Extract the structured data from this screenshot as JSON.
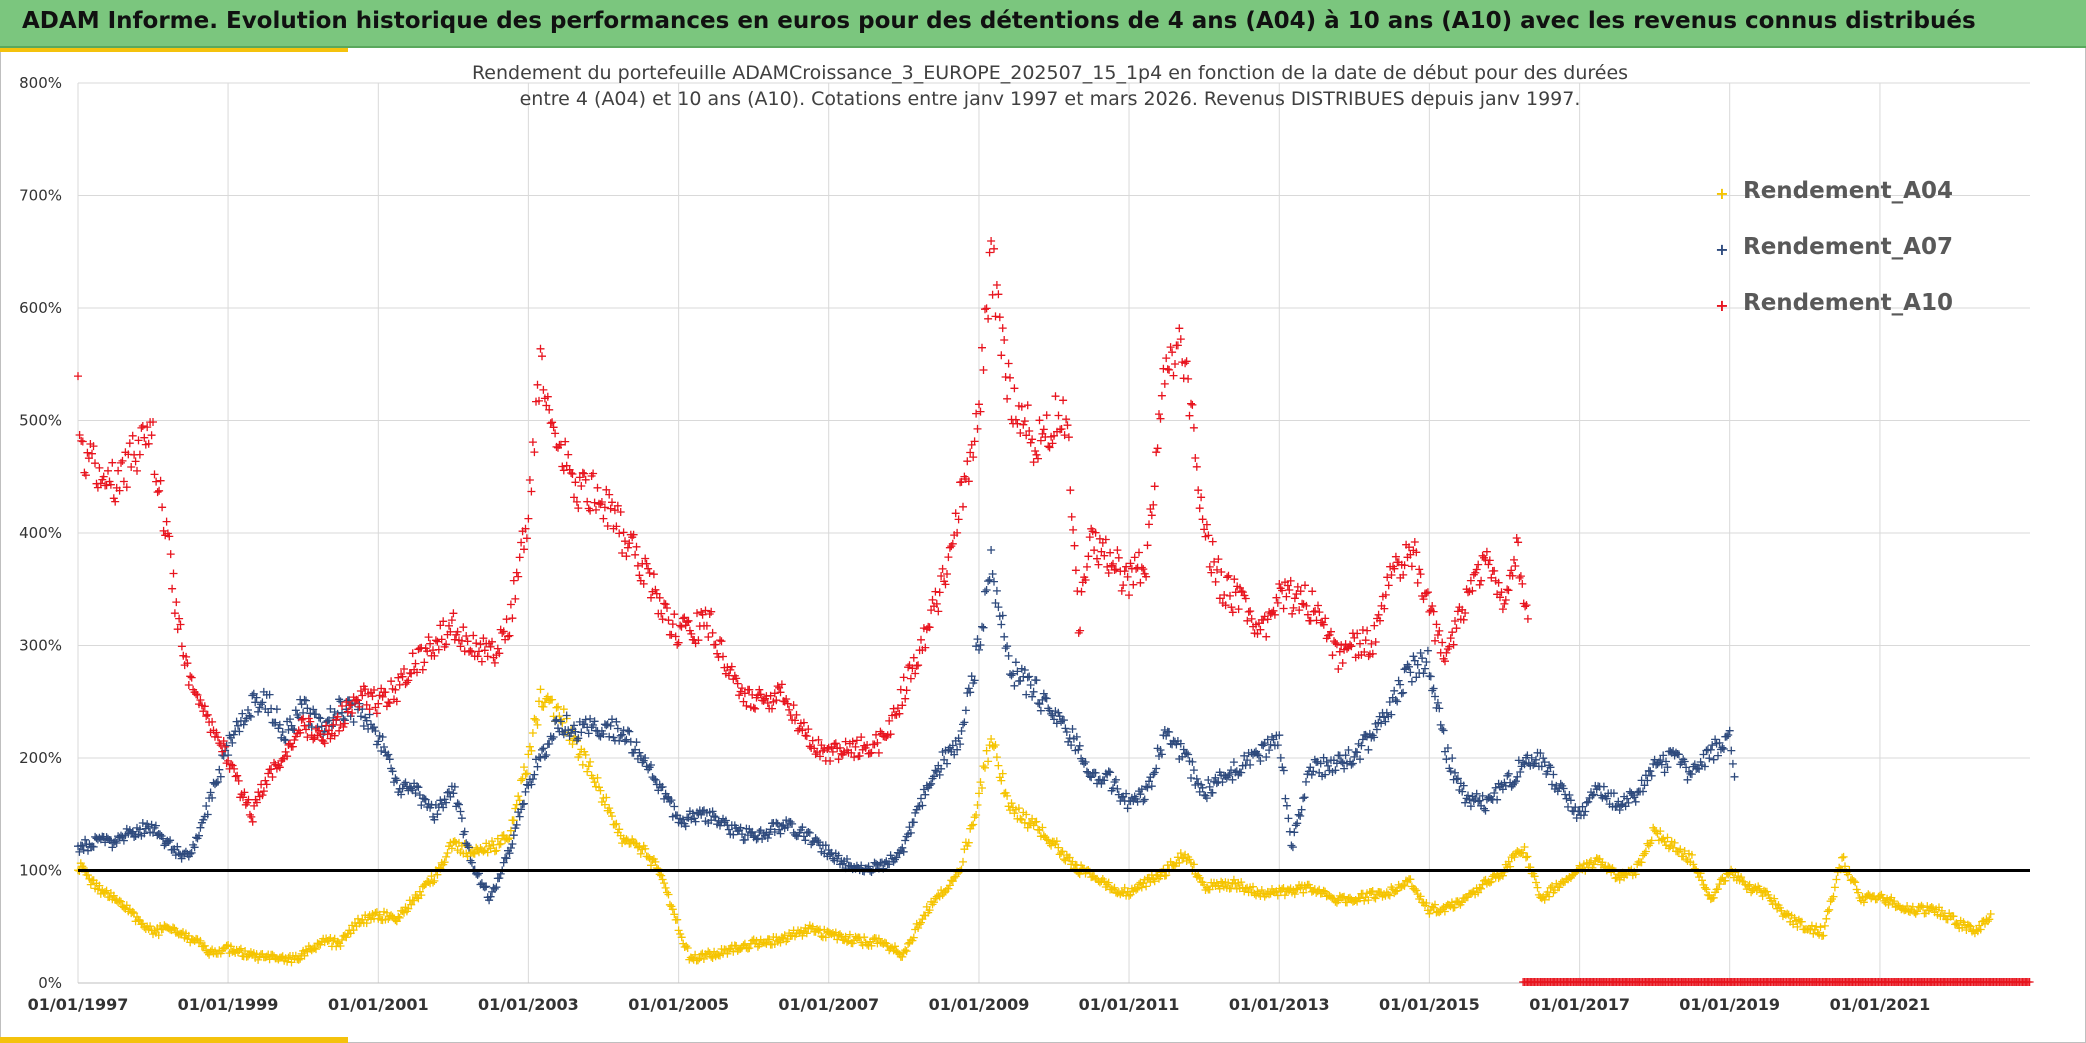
{
  "banner": {
    "title": "ADAM Informe. Evolution historique des performances en euros pour des détentions de 4 ans (A04) à 10 ans (A10) avec les revenus connus distribués"
  },
  "colors": {
    "banner": "#7bc67e",
    "accent": "#f4c20d",
    "A04": "#f5c400",
    "A07": "#2e4a7d",
    "A10": "#e8141e",
    "reference_line": "#000000"
  },
  "chart_data": {
    "type": "scatter",
    "title": "Rendement du portefeuille ADAMCroissance_3_EUROPE_202507_15_1p4  en fonction de la date de début pour des durées",
    "subtitle": "entre 4 (A04) et 10 ans (A10). Cotations entre janv 1997 et mars 2026. Revenus DISTRIBUES depuis janv 1997.",
    "marker": "+",
    "x_scale": "date",
    "xlim": [
      "1997-01-01",
      "2023-01-01"
    ],
    "x_ticks": [
      "01/01/1997",
      "01/01/1999",
      "01/01/2001",
      "01/01/2003",
      "01/01/2005",
      "01/01/2007",
      "01/01/2009",
      "01/01/2011",
      "01/01/2013",
      "01/01/2015",
      "01/01/2017",
      "01/01/2019",
      "01/01/2021"
    ],
    "ylim": [
      0,
      800
    ],
    "y_ticks": [
      "0%",
      "100%",
      "200%",
      "300%",
      "400%",
      "500%",
      "600%",
      "700%",
      "800%"
    ],
    "y_unit": "%",
    "grid": true,
    "reference_line": 100,
    "legend_position": "top-right",
    "series": [
      {
        "name": "Rendement_A04",
        "color": "#f5c400",
        "points": [
          [
            "1997-01-01",
            105
          ],
          [
            "1997-04-01",
            85
          ],
          [
            "1997-07-01",
            75
          ],
          [
            "1997-10-01",
            60
          ],
          [
            "1998-01-01",
            45
          ],
          [
            "1998-04-01",
            50
          ],
          [
            "1998-07-01",
            40
          ],
          [
            "1998-10-01",
            28
          ],
          [
            "1999-01-01",
            30
          ],
          [
            "1999-04-01",
            25
          ],
          [
            "1999-07-01",
            22
          ],
          [
            "1999-10-01",
            20
          ],
          [
            "2000-01-01",
            25
          ],
          [
            "2000-04-01",
            38
          ],
          [
            "2000-07-01",
            35
          ],
          [
            "2000-10-01",
            55
          ],
          [
            "2001-01-01",
            60
          ],
          [
            "2001-04-01",
            58
          ],
          [
            "2001-07-01",
            75
          ],
          [
            "2001-10-01",
            95
          ],
          [
            "2002-01-01",
            125
          ],
          [
            "2002-04-01",
            115
          ],
          [
            "2002-07-01",
            120
          ],
          [
            "2002-10-01",
            130
          ],
          [
            "2003-01-01",
            200
          ],
          [
            "2003-03-01",
            250
          ],
          [
            "2003-06-01",
            240
          ],
          [
            "2003-09-01",
            210
          ],
          [
            "2004-01-01",
            165
          ],
          [
            "2004-04-01",
            130
          ],
          [
            "2004-07-01",
            120
          ],
          [
            "2004-10-01",
            100
          ],
          [
            "2005-01-01",
            50
          ],
          [
            "2005-03-01",
            20
          ],
          [
            "2005-06-01",
            25
          ],
          [
            "2005-10-01",
            30
          ],
          [
            "2006-01-01",
            35
          ],
          [
            "2006-06-01",
            40
          ],
          [
            "2006-10-01",
            48
          ],
          [
            "2007-01-01",
            42
          ],
          [
            "2007-06-01",
            38
          ],
          [
            "2007-10-01",
            35
          ],
          [
            "2008-01-01",
            25
          ],
          [
            "2008-04-01",
            60
          ],
          [
            "2008-07-01",
            80
          ],
          [
            "2008-10-01",
            100
          ],
          [
            "2009-01-01",
            165
          ],
          [
            "2009-03-01",
            220
          ],
          [
            "2009-06-01",
            155
          ],
          [
            "2009-10-01",
            140
          ],
          [
            "2010-01-01",
            125
          ],
          [
            "2010-04-01",
            105
          ],
          [
            "2010-07-01",
            95
          ],
          [
            "2010-10-01",
            85
          ],
          [
            "2011-01-01",
            80
          ],
          [
            "2011-04-01",
            90
          ],
          [
            "2011-07-01",
            100
          ],
          [
            "2011-10-01",
            115
          ],
          [
            "2012-01-01",
            85
          ],
          [
            "2012-06-01",
            88
          ],
          [
            "2012-10-01",
            80
          ],
          [
            "2013-01-01",
            80
          ],
          [
            "2013-06-01",
            85
          ],
          [
            "2013-10-01",
            75
          ],
          [
            "2014-01-01",
            75
          ],
          [
            "2014-06-01",
            80
          ],
          [
            "2014-10-01",
            90
          ],
          [
            "2015-01-01",
            65
          ],
          [
            "2015-06-01",
            70
          ],
          [
            "2015-10-01",
            90
          ],
          [
            "2016-01-01",
            100
          ],
          [
            "2016-04-01",
            120
          ],
          [
            "2016-07-01",
            75
          ],
          [
            "2016-10-01",
            90
          ],
          [
            "2017-01-01",
            100
          ],
          [
            "2017-04-01",
            110
          ],
          [
            "2017-07-01",
            95
          ],
          [
            "2017-10-01",
            100
          ],
          [
            "2018-01-01",
            135
          ],
          [
            "2018-04-01",
            120
          ],
          [
            "2018-07-01",
            110
          ],
          [
            "2018-10-01",
            75
          ],
          [
            "2019-01-01",
            100
          ],
          [
            "2019-04-01",
            85
          ],
          [
            "2019-07-01",
            80
          ],
          [
            "2019-10-01",
            60
          ],
          [
            "2020-01-01",
            50
          ],
          [
            "2020-04-01",
            45
          ],
          [
            "2020-07-01",
            110
          ],
          [
            "2020-10-01",
            75
          ],
          [
            "2021-01-01",
            75
          ],
          [
            "2021-04-01",
            70
          ],
          [
            "2021-07-01",
            65
          ],
          [
            "2021-10-01",
            65
          ],
          [
            "2022-01-01",
            55
          ],
          [
            "2022-04-01",
            45
          ],
          [
            "2022-07-01",
            60
          ]
        ]
      },
      {
        "name": "Rendement_A07",
        "color": "#2e4a7d",
        "points": [
          [
            "1997-01-01",
            120
          ],
          [
            "1997-04-01",
            125
          ],
          [
            "1997-07-01",
            125
          ],
          [
            "1997-10-01",
            135
          ],
          [
            "1998-01-01",
            138
          ],
          [
            "1998-04-01",
            120
          ],
          [
            "1998-07-01",
            110
          ],
          [
            "1998-10-01",
            160
          ],
          [
            "1999-01-01",
            210
          ],
          [
            "1999-04-01",
            245
          ],
          [
            "1999-07-01",
            255
          ],
          [
            "1999-10-01",
            220
          ],
          [
            "2000-01-01",
            245
          ],
          [
            "2000-04-01",
            225
          ],
          [
            "2000-07-01",
            245
          ],
          [
            "2000-10-01",
            240
          ],
          [
            "2001-01-01",
            220
          ],
          [
            "2001-04-01",
            175
          ],
          [
            "2001-07-01",
            170
          ],
          [
            "2001-10-01",
            150
          ],
          [
            "2002-01-01",
            175
          ],
          [
            "2002-04-01",
            105
          ],
          [
            "2002-07-01",
            75
          ],
          [
            "2002-10-01",
            120
          ],
          [
            "2003-01-01",
            175
          ],
          [
            "2003-03-01",
            200
          ],
          [
            "2003-06-01",
            230
          ],
          [
            "2003-09-01",
            225
          ],
          [
            "2004-01-01",
            225
          ],
          [
            "2004-04-01",
            225
          ],
          [
            "2004-07-01",
            205
          ],
          [
            "2004-10-01",
            175
          ],
          [
            "2005-01-01",
            145
          ],
          [
            "2005-06-01",
            148
          ],
          [
            "2005-10-01",
            135
          ],
          [
            "2006-01-01",
            130
          ],
          [
            "2006-06-01",
            140
          ],
          [
            "2006-10-01",
            130
          ],
          [
            "2007-01-01",
            115
          ],
          [
            "2007-06-01",
            100
          ],
          [
            "2007-10-01",
            105
          ],
          [
            "2008-01-01",
            120
          ],
          [
            "2008-04-01",
            165
          ],
          [
            "2008-07-01",
            195
          ],
          [
            "2008-10-01",
            215
          ],
          [
            "2009-01-01",
            300
          ],
          [
            "2009-03-01",
            375
          ],
          [
            "2009-06-01",
            280
          ],
          [
            "2009-10-01",
            260
          ],
          [
            "2010-01-01",
            235
          ],
          [
            "2010-04-01",
            220
          ],
          [
            "2010-07-01",
            185
          ],
          [
            "2010-10-01",
            180
          ],
          [
            "2011-01-01",
            160
          ],
          [
            "2011-04-01",
            170
          ],
          [
            "2011-07-01",
            225
          ],
          [
            "2011-10-01",
            200
          ],
          [
            "2012-01-01",
            170
          ],
          [
            "2012-06-01",
            190
          ],
          [
            "2012-10-01",
            205
          ],
          [
            "2013-01-01",
            220
          ],
          [
            "2013-03-01",
            120
          ],
          [
            "2013-06-01",
            190
          ],
          [
            "2013-10-01",
            195
          ],
          [
            "2014-01-01",
            200
          ],
          [
            "2014-06-01",
            235
          ],
          [
            "2014-10-01",
            280
          ],
          [
            "2015-01-01",
            285
          ],
          [
            "2015-04-01",
            200
          ],
          [
            "2015-07-01",
            165
          ],
          [
            "2015-10-01",
            160
          ],
          [
            "2016-01-01",
            175
          ],
          [
            "2016-04-01",
            195
          ],
          [
            "2016-07-01",
            200
          ],
          [
            "2016-10-01",
            170
          ],
          [
            "2017-01-01",
            150
          ],
          [
            "2017-04-01",
            175
          ],
          [
            "2017-07-01",
            160
          ],
          [
            "2017-10-01",
            165
          ],
          [
            "2018-01-01",
            190
          ],
          [
            "2018-04-01",
            200
          ],
          [
            "2018-07-01",
            185
          ],
          [
            "2018-10-01",
            205
          ],
          [
            "2019-01-01",
            220
          ],
          [
            "2019-02-01",
            180
          ]
        ]
      },
      {
        "name": "Rendement_A10",
        "color": "#e8141e",
        "points": [
          [
            "1997-01-01",
            520
          ],
          [
            "1997-02-01",
            470
          ],
          [
            "1997-04-01",
            460
          ],
          [
            "1997-07-01",
            440
          ],
          [
            "1997-10-01",
            470
          ],
          [
            "1998-01-01",
            480
          ],
          [
            "1998-03-01",
            410
          ],
          [
            "1998-05-01",
            320
          ],
          [
            "1998-07-01",
            270
          ],
          [
            "1998-10-01",
            230
          ],
          [
            "1999-01-01",
            200
          ],
          [
            "1999-03-01",
            170
          ],
          [
            "1999-05-01",
            150
          ],
          [
            "1999-07-01",
            180
          ],
          [
            "1999-10-01",
            205
          ],
          [
            "2000-01-01",
            230
          ],
          [
            "2000-04-01",
            215
          ],
          [
            "2000-07-01",
            235
          ],
          [
            "2000-10-01",
            255
          ],
          [
            "2001-01-01",
            250
          ],
          [
            "2001-04-01",
            260
          ],
          [
            "2001-07-01",
            285
          ],
          [
            "2001-10-01",
            300
          ],
          [
            "2002-01-01",
            320
          ],
          [
            "2002-04-01",
            300
          ],
          [
            "2002-07-01",
            290
          ],
          [
            "2002-10-01",
            320
          ],
          [
            "2003-01-01",
            420
          ],
          [
            "2003-03-01",
            540
          ],
          [
            "2003-06-01",
            470
          ],
          [
            "2003-09-01",
            440
          ],
          [
            "2004-01-01",
            430
          ],
          [
            "2004-04-01",
            400
          ],
          [
            "2004-07-01",
            370
          ],
          [
            "2004-10-01",
            340
          ],
          [
            "2005-01-01",
            310
          ],
          [
            "2005-06-01",
            320
          ],
          [
            "2005-10-01",
            270
          ],
          [
            "2006-01-01",
            250
          ],
          [
            "2006-06-01",
            255
          ],
          [
            "2006-10-01",
            215
          ],
          [
            "2007-01-01",
            205
          ],
          [
            "2007-06-01",
            210
          ],
          [
            "2007-10-01",
            215
          ],
          [
            "2008-01-01",
            260
          ],
          [
            "2008-04-01",
            300
          ],
          [
            "2008-07-01",
            350
          ],
          [
            "2008-10-01",
            430
          ],
          [
            "2009-01-01",
            510
          ],
          [
            "2009-03-01",
            650
          ],
          [
            "2009-06-01",
            520
          ],
          [
            "2009-10-01",
            480
          ],
          [
            "2010-01-01",
            500
          ],
          [
            "2010-03-01",
            510
          ],
          [
            "2010-05-01",
            320
          ],
          [
            "2010-07-01",
            390
          ],
          [
            "2010-10-01",
            380
          ],
          [
            "2011-01-01",
            355
          ],
          [
            "2011-04-01",
            380
          ],
          [
            "2011-07-01",
            550
          ],
          [
            "2011-10-01",
            560
          ],
          [
            "2012-01-01",
            400
          ],
          [
            "2012-04-01",
            350
          ],
          [
            "2012-07-01",
            340
          ],
          [
            "2012-10-01",
            310
          ],
          [
            "2013-01-01",
            340
          ],
          [
            "2013-04-01",
            345
          ],
          [
            "2013-07-01",
            330
          ],
          [
            "2013-10-01",
            290
          ],
          [
            "2014-01-01",
            300
          ],
          [
            "2014-04-01",
            305
          ],
          [
            "2014-07-01",
            360
          ],
          [
            "2014-10-01",
            390
          ],
          [
            "2015-01-01",
            330
          ],
          [
            "2015-04-01",
            290
          ],
          [
            "2015-07-01",
            340
          ],
          [
            "2015-10-01",
            370
          ],
          [
            "2016-01-01",
            330
          ],
          [
            "2016-03-01",
            390
          ],
          [
            "2016-05-01",
            320
          ]
        ]
      }
    ],
    "baseline_series_note": "",
    "baseline_start": "2016-04-01",
    "baseline_end": "2023-01-01",
    "baseline_value": 0,
    "baseline_color": "#e8141e"
  }
}
